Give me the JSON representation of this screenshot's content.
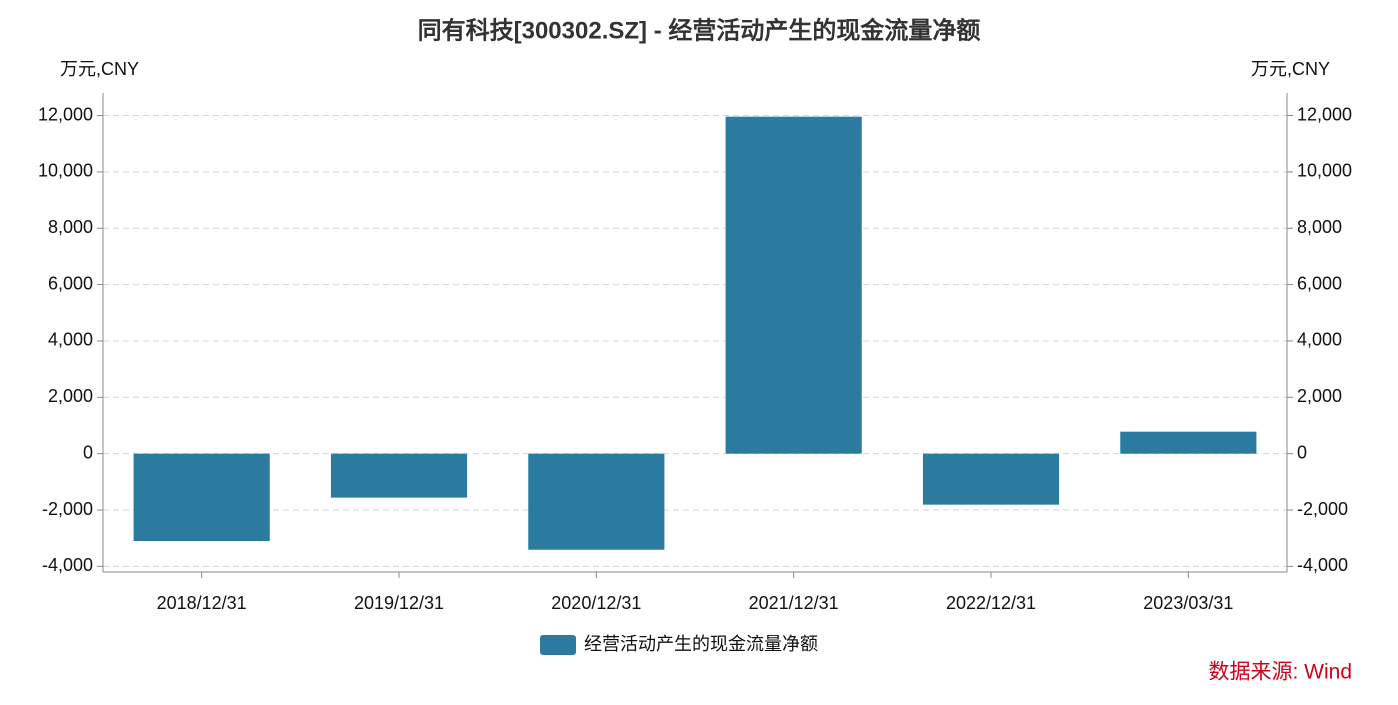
{
  "chart_data": {
    "type": "bar",
    "title": "同有科技[300302.SZ] - 经营活动产生的现金流量净额",
    "y_label": "万元,CNY",
    "y2_label": "万元,CNY",
    "categories": [
      "2018/12/31",
      "2019/12/31",
      "2020/12/31",
      "2021/12/31",
      "2022/12/31",
      "2023/03/31"
    ],
    "series": [
      {
        "name": "经营活动产生的现金流量净额",
        "color": "#2b7aa0",
        "values": [
          -3100,
          -1560,
          -3410,
          11960,
          -1810,
          780
        ]
      }
    ],
    "ylim": [
      -4200,
      12800
    ],
    "yticks": [
      {
        "value": -4000,
        "label": "-4,000"
      },
      {
        "value": -2000,
        "label": "-2,000"
      },
      0,
      {
        "value": 2000,
        "label": "2,000"
      },
      {
        "value": 4000,
        "label": "4,000"
      },
      {
        "value": 6000,
        "label": "6,000"
      },
      {
        "value": 8000,
        "label": "8,000"
      },
      {
        "value": 10000,
        "label": "10,000"
      },
      {
        "value": 12000,
        "label": "12,000"
      }
    ],
    "y2lim": [
      -4200,
      12800
    ],
    "y2ticks": [
      {
        "value": -4000,
        "label": "-4,000"
      },
      {
        "value": -2000,
        "label": "-2,000"
      },
      0,
      {
        "value": 2000,
        "label": "2,000"
      },
      {
        "value": 4000,
        "label": "4,000"
      },
      {
        "value": 6000,
        "label": "6,000"
      },
      {
        "value": 8000,
        "label": "8,000"
      },
      {
        "value": 10000,
        "label": "10,000"
      },
      {
        "value": 12000,
        "label": "12,000"
      }
    ],
    "grid": true,
    "legend": "bottom",
    "source": "数据来源: Wind",
    "source_color": "#d0021b"
  }
}
